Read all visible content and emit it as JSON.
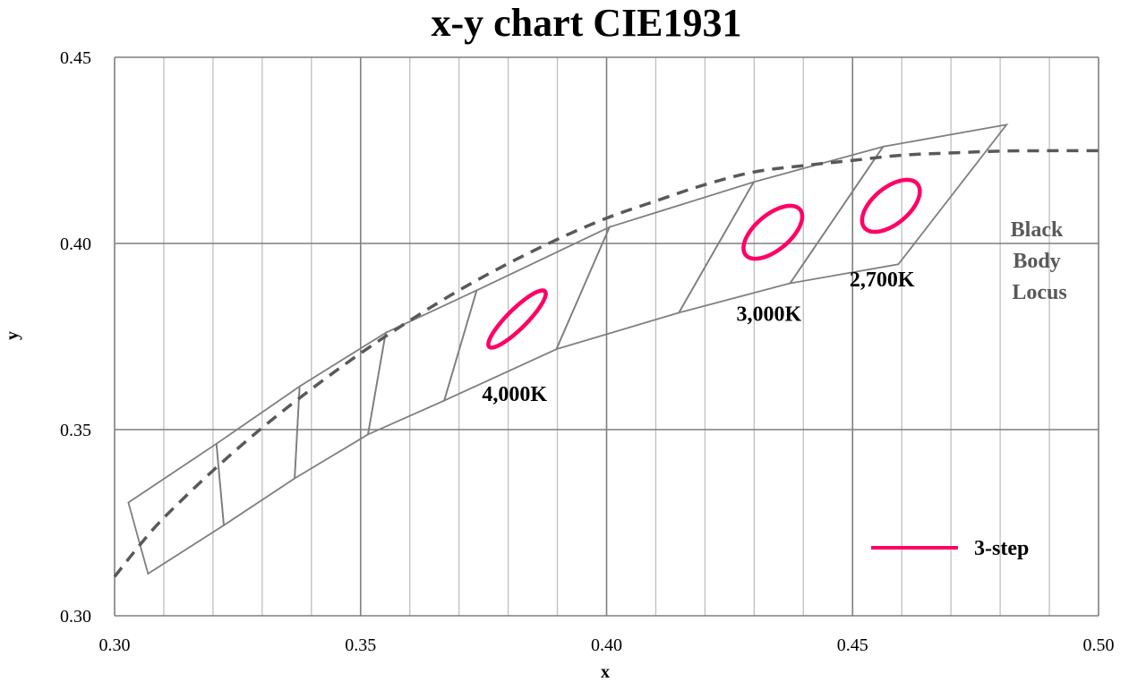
{
  "chart_data": {
    "type": "scatter",
    "title": "x-y chart  CIE1931",
    "xlabel": "x",
    "ylabel": "y",
    "xlim": [
      0.3,
      0.5
    ],
    "ylim": [
      0.3,
      0.45
    ],
    "x_ticks": [
      "0.30",
      "0.35",
      "0.40",
      "0.45",
      "0.50"
    ],
    "y_ticks": [
      "0.30",
      "0.35",
      "0.40",
      "0.45"
    ],
    "grid": {
      "major_x": [
        0.3,
        0.35,
        0.4,
        0.45,
        0.5
      ],
      "minor_x_step": 0.01,
      "major_y": [
        0.3,
        0.35,
        0.4,
        0.45
      ]
    },
    "colors": {
      "grid_major": "#7f7f7f",
      "grid_minor": "#bfbfbf",
      "quadrangles": "#7f7f7f",
      "locus": "#595959",
      "ellipse": "#ff0066"
    },
    "black_body_locus": {
      "label": "Black Body Locus",
      "label_lines": [
        "Black",
        "Body",
        "Locus"
      ],
      "style": "dashed",
      "points": [
        [
          0.3,
          0.3105
        ],
        [
          0.305,
          0.3188
        ],
        [
          0.31,
          0.3263
        ],
        [
          0.32,
          0.339
        ],
        [
          0.33,
          0.3505
        ],
        [
          0.34,
          0.3609
        ],
        [
          0.35,
          0.3705
        ],
        [
          0.36,
          0.3793
        ],
        [
          0.37,
          0.3874
        ],
        [
          0.38,
          0.3946
        ],
        [
          0.39,
          0.4011
        ],
        [
          0.4,
          0.4068
        ],
        [
          0.41,
          0.4114
        ],
        [
          0.42,
          0.4158
        ],
        [
          0.43,
          0.4192
        ],
        [
          0.44,
          0.4209
        ],
        [
          0.45,
          0.4223
        ],
        [
          0.46,
          0.4237
        ],
        [
          0.47,
          0.4243
        ],
        [
          0.48,
          0.4248
        ],
        [
          0.49,
          0.4249
        ],
        [
          0.5,
          0.4249
        ]
      ]
    },
    "quadrangles": [
      [
        [
          0.3028,
          0.3304
        ],
        [
          0.3207,
          0.3462
        ],
        [
          0.3222,
          0.3243
        ],
        [
          0.3068,
          0.3113
        ]
      ],
      [
        [
          0.3207,
          0.3462
        ],
        [
          0.3376,
          0.3616
        ],
        [
          0.3366,
          0.3369
        ],
        [
          0.3222,
          0.3243
        ]
      ],
      [
        [
          0.3376,
          0.3616
        ],
        [
          0.3551,
          0.376
        ],
        [
          0.3515,
          0.3487
        ],
        [
          0.3366,
          0.3369
        ]
      ],
      [
        [
          0.3551,
          0.376
        ],
        [
          0.3736,
          0.3874
        ],
        [
          0.367,
          0.3578
        ],
        [
          0.3515,
          0.3487
        ]
      ],
      [
        [
          0.3736,
          0.3874
        ],
        [
          0.4006,
          0.4044
        ],
        [
          0.3898,
          0.3716
        ],
        [
          0.367,
          0.3578
        ]
      ],
      [
        [
          0.4006,
          0.4044
        ],
        [
          0.4299,
          0.4165
        ],
        [
          0.4147,
          0.3814
        ],
        [
          0.3898,
          0.3716
        ]
      ],
      [
        [
          0.4299,
          0.4165
        ],
        [
          0.4562,
          0.426
        ],
        [
          0.4373,
          0.3893
        ],
        [
          0.4147,
          0.3814
        ]
      ],
      [
        [
          0.4562,
          0.426
        ],
        [
          0.4813,
          0.4319
        ],
        [
          0.4593,
          0.3944
        ],
        [
          0.4373,
          0.3893
        ]
      ]
    ],
    "macadam_ellipses_3_step": [
      {
        "label": "4,000K",
        "center": [
          0.3818,
          0.3797
        ],
        "a": 0.00939,
        "b": 0.00222,
        "angle_deg": 53.7
      },
      {
        "label": "3,000K",
        "center": [
          0.4338,
          0.403
        ],
        "a": 0.00834,
        "b": 0.00408,
        "angle_deg": 53.2
      },
      {
        "label": "2,700K",
        "center": [
          0.4578,
          0.4101
        ],
        "a": 0.0081,
        "b": 0.0042,
        "angle_deg": 53.7
      }
    ],
    "annotations": [
      {
        "text": "4,000K",
        "x": 0.3813,
        "y": 0.3577
      },
      {
        "text": "3,000K",
        "x": 0.433,
        "y": 0.3792
      },
      {
        "text": "2,700K",
        "x": 0.456,
        "y": 0.3885
      }
    ],
    "legend": {
      "position": "bottom-right",
      "entries": [
        {
          "name": "3-step",
          "color": "#ff0066"
        }
      ]
    }
  }
}
